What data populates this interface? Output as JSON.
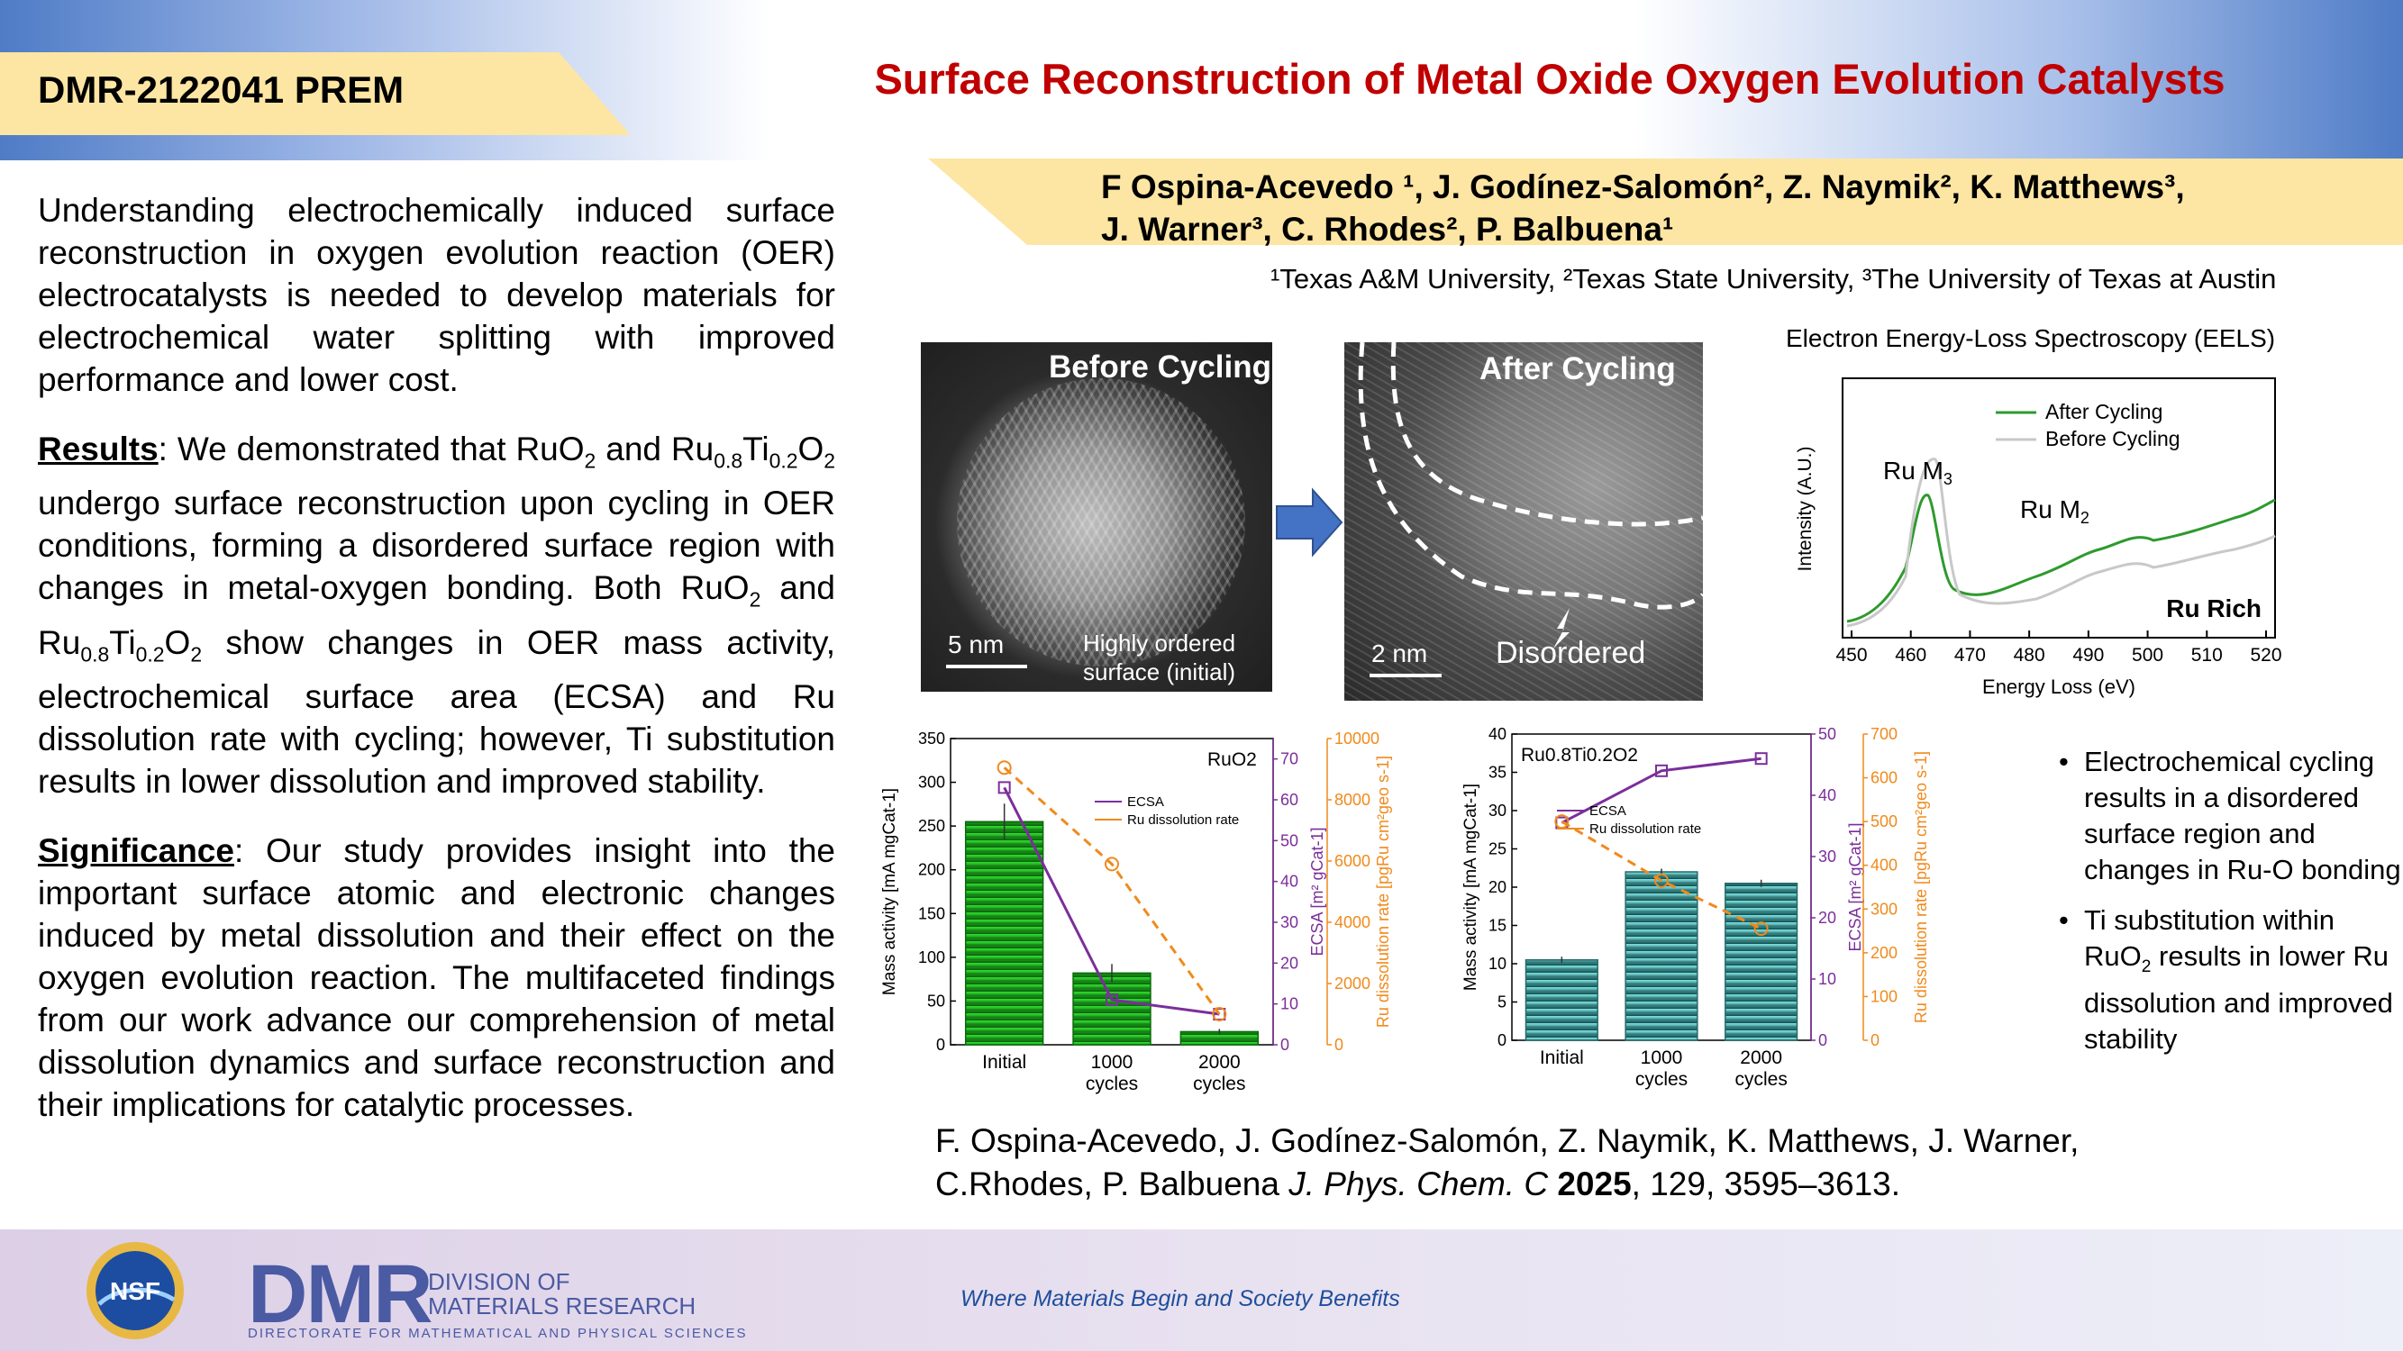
{
  "header": {
    "award": "DMR-2122041 PREM",
    "title": "Surface Reconstruction of Metal Oxide Oxygen Evolution Catalysts",
    "authors_line1": "F Ospina-Acevedo ¹, J. Godínez-Salomón², Z. Naymik², K. Matthews³,",
    "authors_line2": "J. Warner³, C. Rhodes², P.  Balbuena¹",
    "affiliations": "¹Texas A&M University, ²Texas State University, ³The University of Texas at Austin"
  },
  "left": {
    "intro": "Understanding electrochemically induced surface reconstruction in oxygen evolution reaction (OER) electrocatalysts is needed to develop materials for electrochemical water splitting with improved performance and lower cost.",
    "results_heading": "Results",
    "results_parts": [
      ":  We demonstrated that RuO",
      "2",
      " and Ru",
      "0.8",
      "Ti",
      "0.2",
      "O",
      "2",
      " undergo surface reconstruction upon cycling in OER conditions, forming a disordered surface region with changes in metal-oxygen bonding. Both RuO",
      "2",
      " and Ru",
      "0.8",
      "Ti",
      "0.2",
      "O",
      "2",
      " show changes in OER mass activity, electrochemical surface area (ECSA) and Ru dissolution rate with cycling; however, Ti substitution results in lower dissolution and improved stability."
    ],
    "significance_heading": "Significance",
    "significance": ": Our study provides insight into the important surface atomic and electronic changes induced by metal dissolution and their effect on the oxygen evolution reaction. The multifaceted findings from our work advance our comprehension of metal dissolution dynamics and surface reconstruction and their implications for catalytic processes."
  },
  "images": {
    "before_title": "Before Cycling",
    "before_scale": "5 nm",
    "before_caption_1": "Highly ordered",
    "before_caption_2": "surface (initial)",
    "after_title": "After Cycling",
    "after_scale": "2 nm",
    "after_caption": "Disordered"
  },
  "eels": {
    "title": "Electron Energy-Loss Spectroscopy (EELS)",
    "legend": [
      "After Cycling",
      "Before Cycling"
    ],
    "ylabel": "Intensity (A.U.)",
    "xlabel": "Energy Loss (eV)",
    "peak1": "Ru M",
    "peak1_sub": "3",
    "peak2": "Ru M",
    "peak2_sub": "2",
    "corner": "Ru Rich",
    "xticks": [
      "450",
      "460",
      "470",
      "480",
      "490",
      "500",
      "510",
      "520"
    ]
  },
  "bullets": [
    "Electrochemical cycling results in a disordered surface region and changes in Ru-O bonding",
    "Ti substitution within RuO",
    "2",
    " results in lower Ru dissolution and improved stability"
  ],
  "citation": {
    "line1": "F. Ospina-Acevedo, J. Godínez-Salomón, Z. Naymik, K. Matthews, J. Warner,",
    "line2a": "C.Rhodes, P. Balbuena ",
    "journal": "J. Phys. Chem. C",
    "year": "2025",
    "rest": ", 129, 3595–3613."
  },
  "footer": {
    "tagline": "Where Materials Begin and Society Benefits",
    "nsf": "NSF",
    "dmr": "DMR",
    "dmr_sub1": "DIVISION OF",
    "dmr_sub2": "MATERIALS RESEARCH",
    "dmr_line": "DIRECTORATE FOR MATHEMATICAL AND PHYSICAL SCIENCES"
  },
  "chart_data": [
    {
      "type": "bar",
      "title": "RuO2",
      "categories": [
        "Initial",
        "1000 cycles",
        "2000 cycles"
      ],
      "bars": {
        "name": "Mass activity [mA mgCat-1]",
        "values": [
          255,
          82,
          15
        ],
        "ylim": [
          0,
          350
        ],
        "yticks": [
          0,
          50,
          100,
          150,
          200,
          250,
          300,
          350
        ]
      },
      "series": [
        {
          "name": "ECSA",
          "values": [
            63,
            11,
            7.5
          ],
          "ylim": [
            0,
            75
          ],
          "yticks": [
            0,
            10,
            20,
            30,
            40,
            50,
            60,
            70
          ],
          "color": "#7b2e9a",
          "axis_label": "ECSA [m² gCat-1]"
        },
        {
          "name": "Ru dissolution rate",
          "values": [
            9050,
            5900,
            1000
          ],
          "ylim": [
            0,
            10000
          ],
          "yticks": [
            0,
            2000,
            4000,
            6000,
            8000,
            10000
          ],
          "color": "#f08a1c",
          "axis_label": "Ru dissolution rate [pgRu cm²geo s-1]"
        }
      ]
    },
    {
      "type": "bar",
      "title": "Ru0.8Ti0.2O2",
      "categories": [
        "Initial",
        "1000 cycles",
        "2000 cycles"
      ],
      "bars": {
        "name": "Mass activity [mA mgCat-1]",
        "values": [
          10.5,
          22,
          20.5
        ],
        "ylim": [
          0,
          40
        ],
        "yticks": [
          0,
          5,
          10,
          15,
          20,
          25,
          30,
          35,
          40
        ]
      },
      "series": [
        {
          "name": "ECSA",
          "values": [
            35.5,
            44,
            46
          ],
          "ylim": [
            0,
            50
          ],
          "yticks": [
            0,
            10,
            20,
            30,
            40,
            50
          ],
          "color": "#7b2e9a",
          "axis_label": "ECSA [m² gCat-1]"
        },
        {
          "name": "Ru dissolution rate",
          "values": [
            500,
            365,
            255
          ],
          "ylim": [
            0,
            700
          ],
          "yticks": [
            0,
            100,
            200,
            300,
            400,
            500,
            600,
            700
          ],
          "color": "#f08a1c",
          "axis_label": "Ru dissolution rate [pgRu cm²geo s-1]"
        }
      ]
    }
  ]
}
